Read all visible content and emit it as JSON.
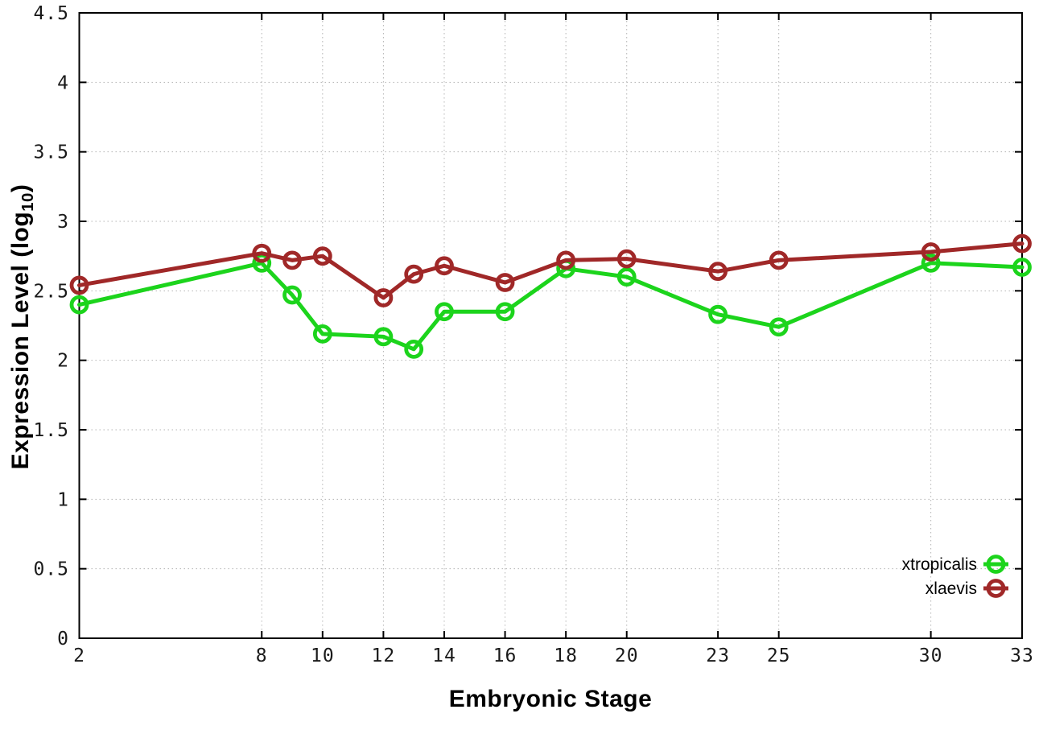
{
  "chart_data": {
    "type": "line",
    "x": [
      2,
      8,
      9,
      10,
      12,
      13,
      14,
      16,
      18,
      20,
      23,
      25,
      30,
      33
    ],
    "series": [
      {
        "name": "xtropicalis",
        "color": "#1cd41c",
        "marker": "open-circle",
        "values": [
          2.4,
          2.7,
          2.47,
          2.19,
          2.17,
          2.08,
          2.35,
          2.35,
          2.66,
          2.6,
          2.33,
          2.24,
          2.7,
          2.67
        ]
      },
      {
        "name": "xlaevis",
        "color": "#a02828",
        "marker": "open-circle",
        "values": [
          2.54,
          2.77,
          2.72,
          2.75,
          2.45,
          2.62,
          2.68,
          2.56,
          2.72,
          2.73,
          2.64,
          2.72,
          2.78,
          2.84
        ]
      }
    ],
    "title": "",
    "xlabel": "Embryonic Stage",
    "ylabel": "Expression Level (log10)",
    "ylabel_parts": {
      "pre": "Expression Level (log",
      "sub": "10",
      "post": ")"
    },
    "xticks": [
      2,
      8,
      10,
      12,
      14,
      16,
      18,
      20,
      23,
      25,
      30,
      33
    ],
    "yticks": [
      0,
      0.5,
      1,
      1.5,
      2,
      2.5,
      3,
      3.5,
      4,
      4.5
    ],
    "ytick_labels": [
      "0",
      "0.5",
      "1",
      "1.5",
      "2",
      "2.5",
      "3",
      "3.5",
      "4",
      "4.5"
    ],
    "xlim": [
      2,
      33
    ],
    "ylim": [
      0,
      4.5
    ],
    "grid": true,
    "grid_style": "dotted",
    "legend_position": "bottom-right",
    "border_color": "#000000",
    "grid_color": "#b4b4b4",
    "tick_label_color": "#1a1a1a"
  }
}
